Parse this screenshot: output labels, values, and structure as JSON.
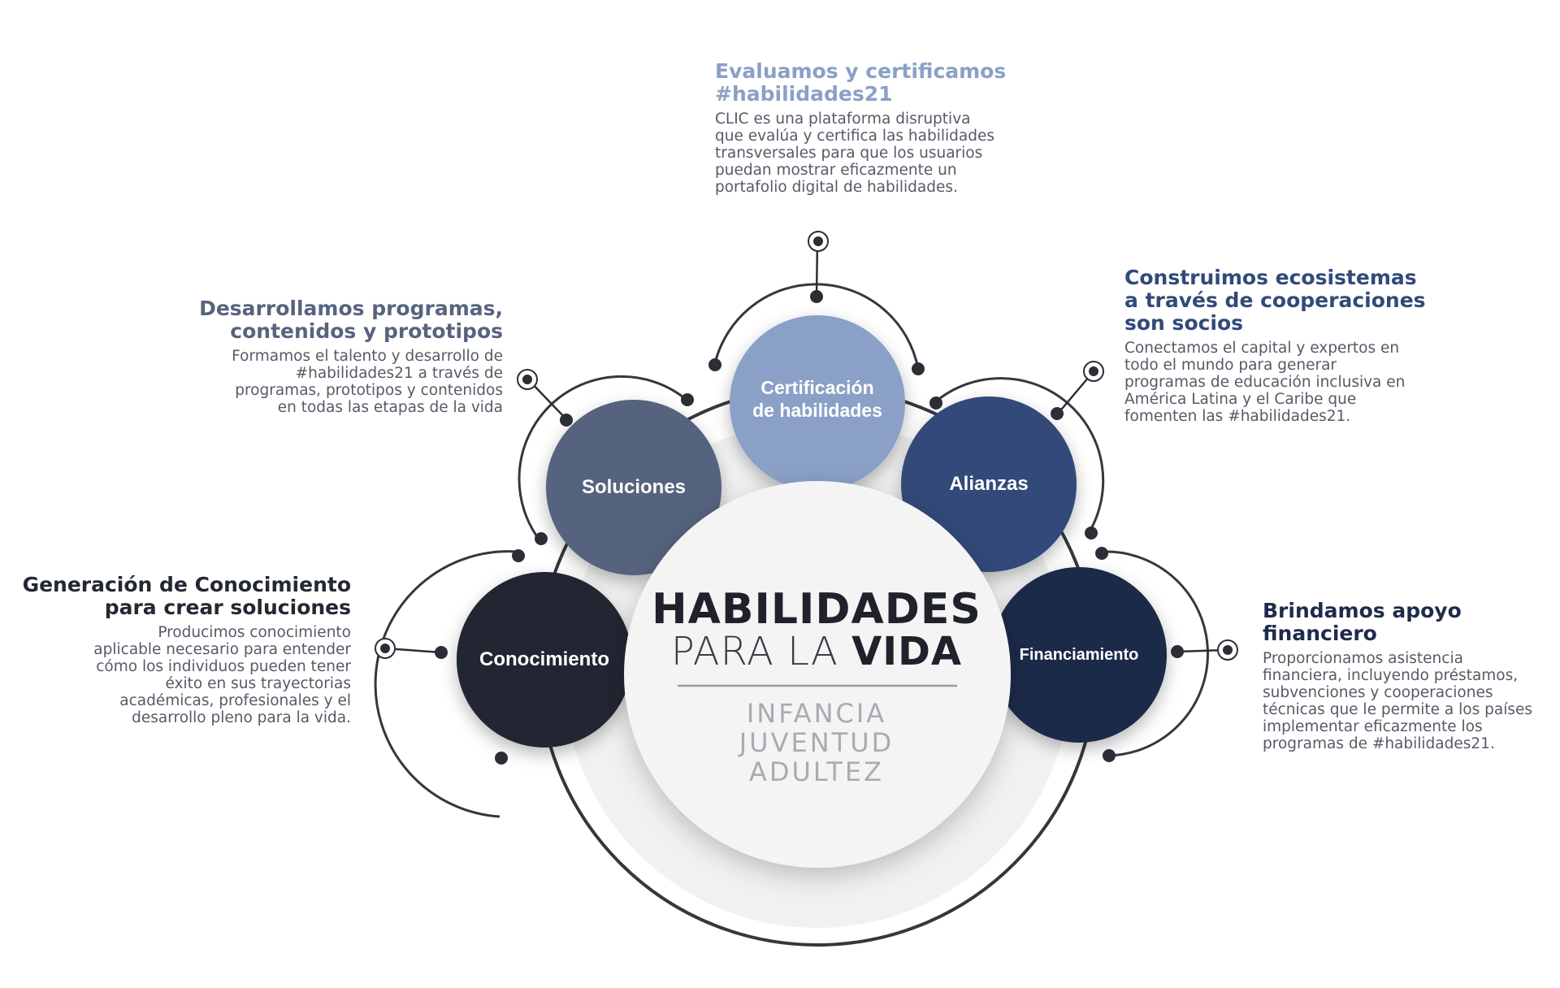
{
  "center": {
    "title_line1": "HABILIDADES",
    "title_line2_light": "PARA LA",
    "title_line2_bold": "VIDA",
    "stages": [
      "INFANCIA",
      "JUVENTUD",
      "ADULTEZ"
    ]
  },
  "circles": [
    {
      "label_lines": [
        "Conocimiento"
      ],
      "color": "#232833"
    },
    {
      "label_lines": [
        "Soluciones"
      ],
      "color": "#57647e"
    },
    {
      "label_lines": [
        "Certificación",
        "de habilidades"
      ],
      "color": "#8aa0c6"
    },
    {
      "label_lines": [
        "Alianzas"
      ],
      "color": "#314a79"
    },
    {
      "label_lines": [
        "Financiamiento"
      ],
      "color": "#1e2b4a"
    }
  ],
  "blocks": {
    "conocimiento": {
      "title_lines": [
        "Generación de Conocimiento",
        "para crear soluciones"
      ],
      "body_lines": [
        "Producimos conocimiento",
        "aplicable necesario para entender",
        "cómo los individuos pueden tener",
        "éxito en sus trayectorias",
        "académicas, profesionales y el",
        "desarrollo pleno para la vida."
      ],
      "color": "#232833"
    },
    "soluciones": {
      "title_lines": [
        "Desarrollamos programas,",
        "contenidos y prototipos"
      ],
      "body_lines": [
        "Formamos el talento y desarrollo de",
        "#habilidades21 a través de",
        "programas, prototipos y contenidos",
        "en todas las etapas de la vida"
      ],
      "color": "#57647e"
    },
    "certificacion": {
      "title_lines": [
        "Evaluamos y certificamos",
        "#habilidades21"
      ],
      "body_lines": [
        "CLIC es una plataforma disruptiva",
        "que evalúa y certifica las habilidades",
        "transversales para que los usuarios",
        "puedan mostrar eficazmente un",
        "portafolio digital de habilidades."
      ],
      "color": "#8aa0c6"
    },
    "alianzas": {
      "title_lines": [
        "Construimos ecosistemas",
        "a través de cooperaciones",
        "son socios"
      ],
      "body_lines": [
        "Conectamos el capital y expertos en",
        "todo el mundo para generar",
        "programas de educación inclusiva en",
        "América Latina y el Caribe que",
        "fomenten las #habilidades21."
      ],
      "color": "#314a79"
    },
    "financiamiento": {
      "title_lines": [
        "Brindamos apoyo",
        "financiero"
      ],
      "body_lines": [
        "Proporcionamos asistencia",
        "financiera, incluyendo préstamos,",
        "subvenciones y cooperaciones",
        "técnicas que le permite a los países",
        "implementar eficazmente los",
        "programas de #habilidades21."
      ],
      "color": "#1e2b4a"
    }
  },
  "colors": {
    "connector": "#2b2e35",
    "ring": "#34373e",
    "center_fill": "#f4f4f5",
    "stage_text": "#a9abb2",
    "divider": "#9a9ca3"
  }
}
